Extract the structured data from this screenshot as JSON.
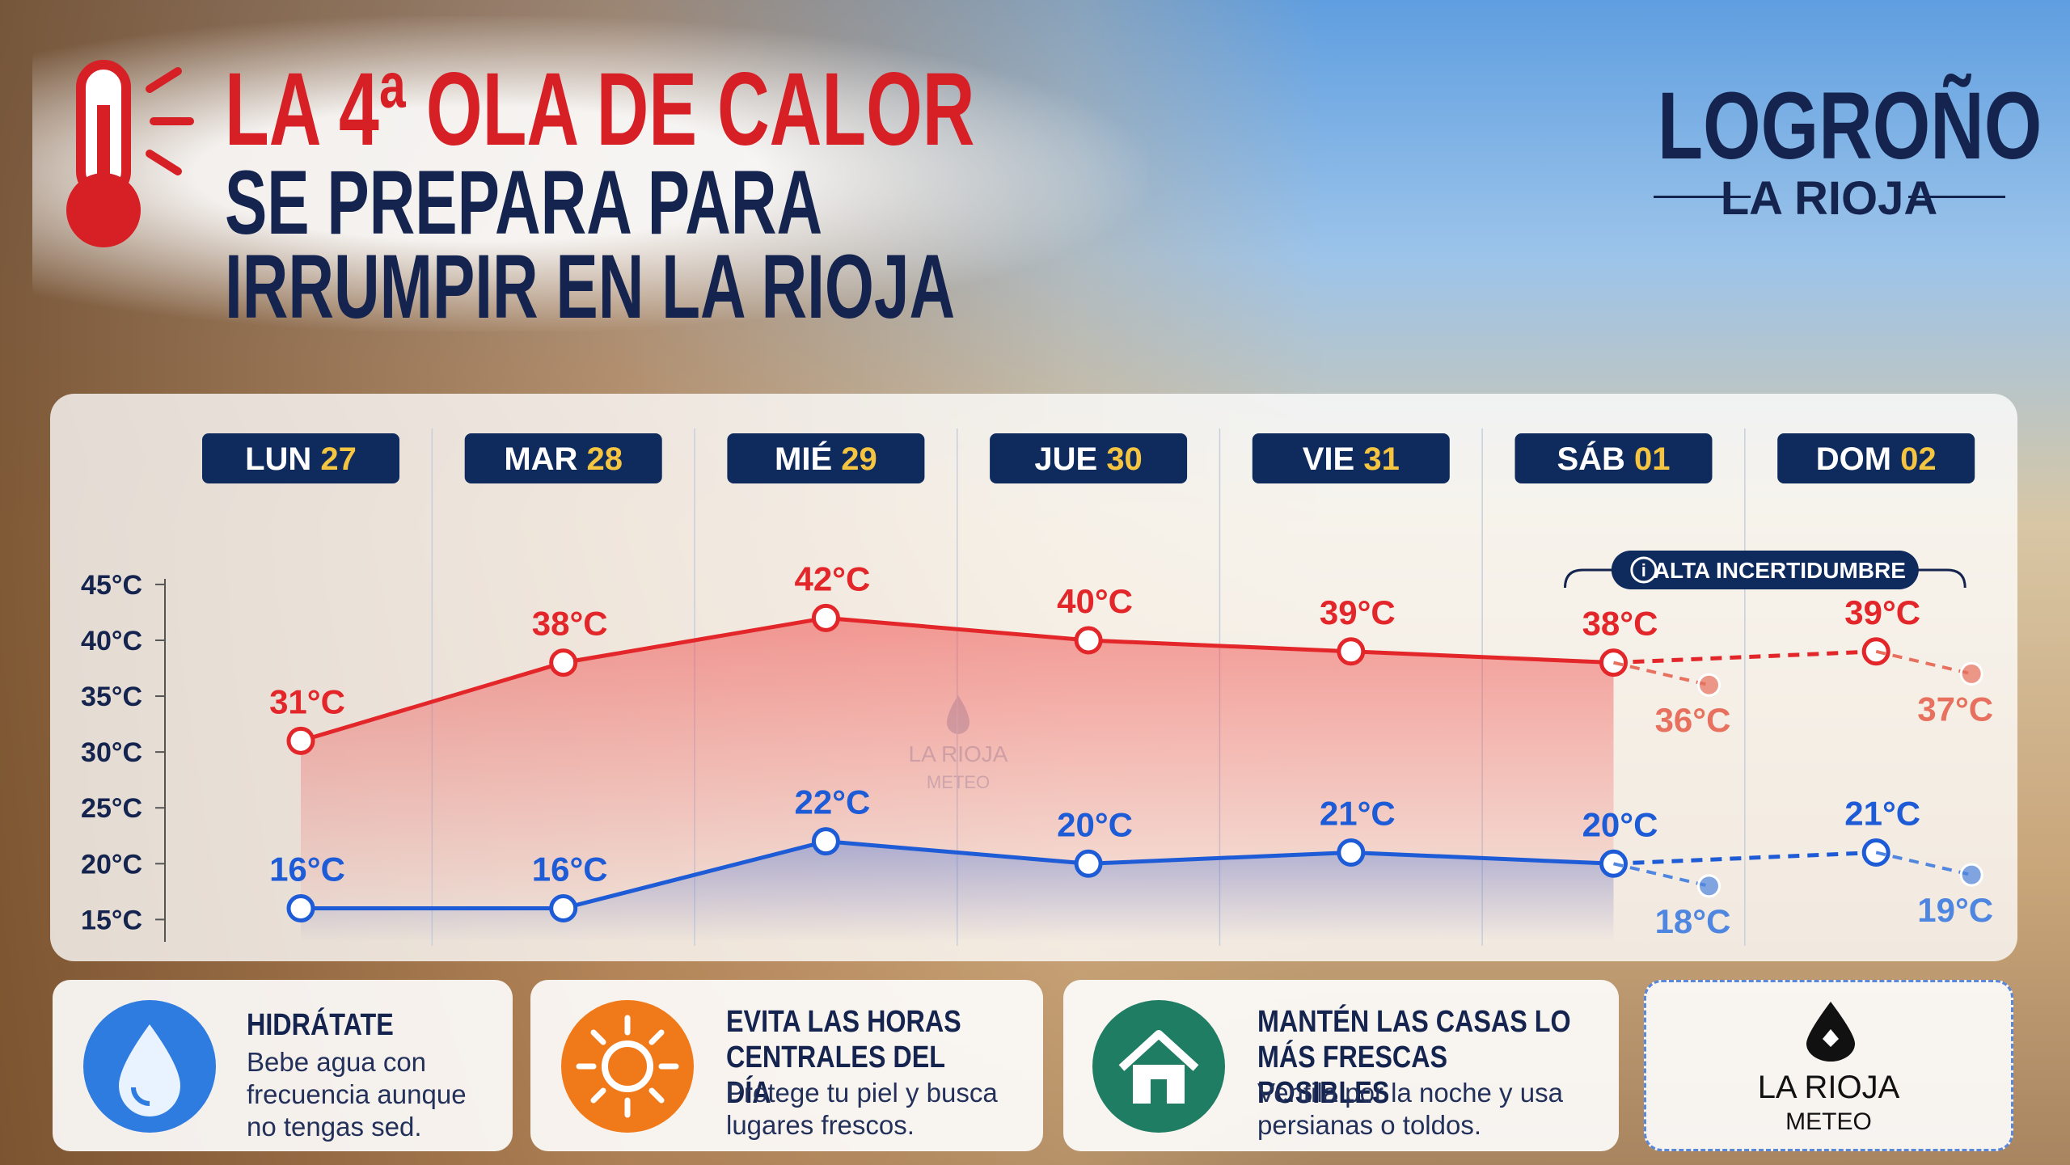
{
  "header": {
    "line1": "LA 4ª OLA DE CALOR",
    "line2": "SE PREPARA PARA",
    "line3": "IRRUMPIR EN LA RIOJA"
  },
  "location": {
    "city": "LOGROÑO",
    "region": "LA RIOJA"
  },
  "chart_data": {
    "type": "line",
    "categories": [
      "LUN",
      "MAR",
      "MIÉ",
      "JUE",
      "VIE",
      "SÁB",
      "DOM"
    ],
    "dates": [
      "27",
      "28",
      "29",
      "30",
      "31",
      "01",
      "02"
    ],
    "ylim": [
      13,
      45.5
    ],
    "yticks": [
      {
        "value": 45,
        "label": "45°C"
      },
      {
        "value": 40,
        "label": "40°C"
      },
      {
        "value": 35,
        "label": "35°C"
      },
      {
        "value": 30,
        "label": "30°C"
      },
      {
        "value": 25,
        "label": "25°C"
      },
      {
        "value": 20,
        "label": "20°C"
      },
      {
        "value": 15,
        "label": "15°C"
      }
    ],
    "annotation": "ALTA INCERTIDUMBRE",
    "series": [
      {
        "color": "#e3262a",
        "values": [
          31,
          38,
          42,
          40,
          39,
          38,
          39
        ],
        "value_labels": [
          "31°C",
          "38°C",
          "42°C",
          "40°C",
          "39°C",
          "38°C",
          "39°C"
        ]
      },
      {
        "color": "#1e5bd6",
        "values": [
          16,
          16,
          22,
          20,
          21,
          20,
          21
        ],
        "value_labels": [
          "16°C",
          "16°C",
          "22°C",
          "20°C",
          "21°C",
          "20°C",
          "21°C"
        ]
      },
      {
        "color": "#e8705f",
        "dashed": true,
        "values": [
          null,
          null,
          null,
          null,
          null,
          36,
          37
        ],
        "value_labels": [
          null,
          null,
          null,
          null,
          null,
          "36°C",
          "37°C"
        ]
      },
      {
        "color": "#4f86e0",
        "dashed": true,
        "values": [
          null,
          null,
          null,
          null,
          null,
          18,
          19
        ],
        "value_labels": [
          null,
          null,
          null,
          null,
          null,
          "18°C",
          "19°C"
        ]
      }
    ]
  },
  "tips": [
    {
      "title": "HIDRÁTATE",
      "text": "Bebe agua con frecuencia aunque no tengas sed."
    },
    {
      "title": "EVITA LAS HORAS CENTRALES DEL DÍA",
      "text": "Protege tu piel y busca lugares frescos."
    },
    {
      "title": "MANTÉN LAS CASAS LO MÁS FRESCAS POSIBLES",
      "text": "Ventila por la noche y usa persianas o toldos."
    }
  ],
  "logo": {
    "name": "LA RIOJA",
    "sub": "METEO"
  }
}
